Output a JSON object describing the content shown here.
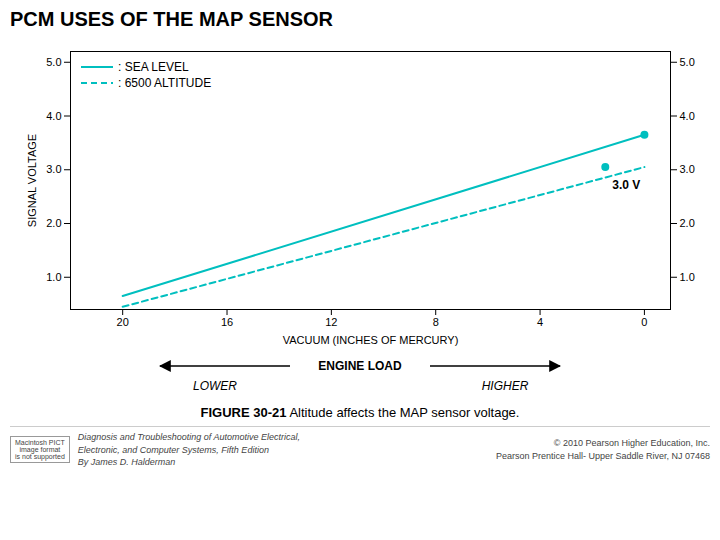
{
  "chart_data": {
    "type": "line",
    "title": "PCM USES OF THE MAP SENSOR",
    "xlabel": "VACUUM (INCHES OF MERCURY)",
    "ylabel": "SIGNAL VOLTAGE",
    "xlim": [
      22,
      -1
    ],
    "ylim": [
      0.4,
      5.2
    ],
    "xticks": [
      20,
      16,
      12,
      8,
      4,
      0
    ],
    "yticks": [
      1,
      2,
      3,
      4,
      5
    ],
    "grid": false,
    "legend": "upper left",
    "series": [
      {
        "name": ": SEA LEVEL",
        "color": "#00BFBF",
        "line_style": "solid",
        "x": [
          20,
          0
        ],
        "values": [
          0.65,
          3.65
        ],
        "end_point": {
          "x": 0,
          "y": 3.65
        }
      },
      {
        "name": ": 6500 ALTITUDE",
        "color": "#00BFBF",
        "line_style": "dashed",
        "x": [
          20,
          0
        ],
        "values": [
          0.45,
          3.05
        ],
        "end_point": {
          "x": 1.5,
          "y": 3.05
        }
      }
    ],
    "annotations": [
      {
        "text": "3.0 V",
        "x": 1.5,
        "y": 3.05
      }
    ],
    "engine_load": {
      "label": "ENGINE LOAD",
      "lower": "LOWER",
      "higher": "HIGHER"
    },
    "caption_bold": "FIGURE 30-21",
    "caption": " Altitude affects the MAP sensor voltage.",
    "footer_left": "Diagnosis and Troubleshooting of Automotive Electrical,\nElectronic, and Computer Systems, Fifth Edition\nBy James D. Halderman",
    "footer_right": "© 2010 Pearson Higher Education, Inc.\nPearson Prentice Hall- Upper Saddle River, NJ 07468",
    "footer_logo": "Macintosh PICT\nimage format\nis not supported"
  }
}
